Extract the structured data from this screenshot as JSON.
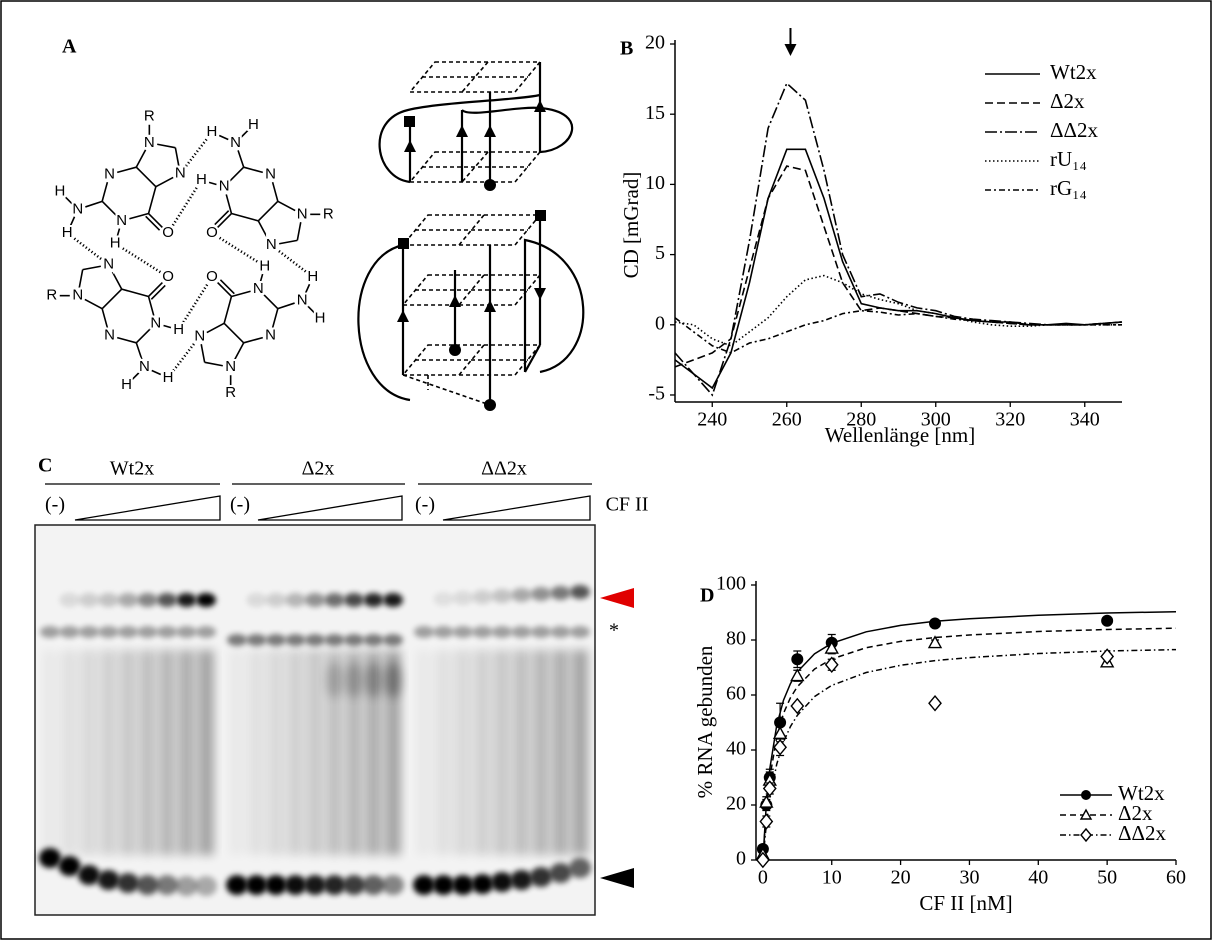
{
  "panel_a": {
    "label": "A",
    "guanines": [
      [
        "R",
        "N",
        "N",
        "N",
        "N",
        "H",
        "O",
        "N",
        "H",
        "H"
      ],
      [
        "R",
        "N",
        "N",
        "N",
        "N",
        "H",
        "O",
        "N",
        "H",
        "H"
      ],
      [
        "R",
        "N",
        "N",
        "N",
        "N",
        "H",
        "O",
        "N",
        "H",
        "H"
      ],
      [
        "R",
        "N",
        "N",
        "N",
        "N",
        "H",
        "O",
        "N",
        "H",
        "H"
      ]
    ]
  },
  "panel_c": {
    "label": "C",
    "groups": [
      "Wt2x",
      "Δ2x",
      "ΔΔ2x"
    ],
    "controls": [
      "(-)",
      "(-)",
      "(-)"
    ],
    "protein": "CF II",
    "marker": "*"
  },
  "chart_data": [
    {
      "type": "line",
      "label": "B",
      "xlabel": "Wellenlänge [nm]",
      "ylabel": "CD [mGrad]",
      "x": [
        230,
        235,
        240,
        245,
        250,
        255,
        260,
        265,
        270,
        275,
        280,
        285,
        290,
        295,
        300,
        305,
        310,
        315,
        320,
        325,
        330,
        335,
        340,
        345,
        350
      ],
      "series": [
        {
          "name": "Wt2x",
          "color": "#000000",
          "dash": "none",
          "values": [
            -2.5,
            -3.5,
            -4.5,
            -2,
            3,
            9,
            12.5,
            12.5,
            9,
            4.5,
            1.5,
            1.2,
            1,
            1,
            0.8,
            0.5,
            0.3,
            0.2,
            0.2,
            0,
            0,
            0.1,
            0,
            0.1,
            0.2
          ]
        },
        {
          "name": "Δ2x",
          "color": "#000000",
          "dash": "8 4",
          "values": [
            -3,
            -2.5,
            -2,
            -1,
            4,
            9,
            11.3,
            11,
            7,
            3,
            1,
            1.2,
            1,
            0.8,
            0.6,
            0.5,
            0.3,
            0.2,
            0.1,
            0,
            0,
            0,
            0,
            0.1,
            0.2
          ]
        },
        {
          "name": "ΔΔ2x",
          "color": "#000000",
          "dash": "12 3 2 3",
          "values": [
            -2,
            -3.5,
            -5,
            -1,
            6,
            14,
            17.2,
            16,
            11,
            5,
            2,
            2.2,
            1.6,
            1.2,
            1,
            0.6,
            0.4,
            0.3,
            0.2,
            0.1,
            0,
            0,
            0,
            0.1,
            0.2
          ]
        },
        {
          "name": "rU₁₄",
          "color": "#000000",
          "dash": "1.5 2.5",
          "values": [
            0.2,
            0,
            -1,
            -1.5,
            -0.5,
            0.5,
            2,
            3.2,
            3.5,
            3,
            2.2,
            1.8,
            1.5,
            1,
            0.8,
            0.5,
            0.2,
            0,
            -0.1,
            -0.1,
            0,
            0,
            0,
            0,
            0
          ]
        },
        {
          "name": "rG₁₄",
          "color": "#000000",
          "dash": "6 3 2 3",
          "values": [
            0.5,
            -0.5,
            -1.5,
            -2,
            -1.3,
            -1,
            -0.5,
            0,
            0.3,
            0.8,
            1,
            0.9,
            0.7,
            0.8,
            0.6,
            0.4,
            0.3,
            0.2,
            0.1,
            0,
            0,
            0,
            0,
            0,
            0
          ]
        }
      ],
      "xlim": [
        230,
        350
      ],
      "xticks": [
        240,
        260,
        280,
        300,
        320,
        340
      ],
      "ylim": [
        -5.5,
        20
      ],
      "yticks": [
        -5,
        0,
        5,
        10,
        15,
        20
      ],
      "legend": "upper right"
    },
    {
      "type": "scatter",
      "label": "D",
      "xlabel": "CF II [nM]",
      "ylabel": "% RNA gebunden",
      "fit_x": [
        0,
        0.5,
        1,
        2,
        3,
        4,
        5,
        7.5,
        10,
        15,
        20,
        25,
        30,
        40,
        50,
        60
      ],
      "series": [
        {
          "name": "Wt2x",
          "color": "#000000",
          "marker": "circle",
          "dash": "none",
          "x": [
            0,
            0.5,
            1,
            2.5,
            5,
            10,
            25,
            50
          ],
          "values": [
            4,
            20,
            30,
            50,
            73,
            79,
            86,
            87
          ],
          "errors": [
            1,
            2,
            3,
            7,
            3,
            3,
            1,
            1
          ],
          "fit_values": [
            0,
            20.2,
            33.2,
            48.9,
            58.1,
            64.1,
            68.4,
            75.0,
            78.8,
            83.0,
            85.3,
            86.8,
            87.7,
            89.0,
            89.8,
            90.3
          ]
        },
        {
          "name": "Δ2x",
          "color": "#000000",
          "marker": "triangle",
          "dash": "6 4",
          "x": [
            0,
            0.5,
            1,
            2.5,
            5,
            10,
            25,
            50
          ],
          "values": [
            2,
            21,
            29,
            46,
            67,
            77,
            79,
            72
          ],
          "errors": [
            1,
            2,
            3,
            5,
            2,
            2,
            1,
            1
          ],
          "fit_values": [
            0,
            18.1,
            30.0,
            44.6,
            53.3,
            59.0,
            63.0,
            69.4,
            73.1,
            77.2,
            79.5,
            80.9,
            81.8,
            83.1,
            83.8,
            84.3
          ]
        },
        {
          "name": "ΔΔ2x",
          "color": "#000000",
          "marker": "diamond",
          "dash": "6 3 1.5 3",
          "x": [
            0,
            0.5,
            1,
            2.5,
            5,
            10,
            25,
            50
          ],
          "values": [
            0,
            14,
            26,
            41,
            56,
            71,
            57,
            74
          ],
          "errors": [
            1,
            2,
            2,
            3,
            1,
            2,
            1,
            1
          ],
          "fit_values": [
            0,
            12.9,
            22.2,
            34.8,
            42.9,
            48.5,
            52.6,
            59.4,
            63.5,
            68.2,
            70.8,
            72.5,
            73.6,
            75.1,
            76.0,
            76.5
          ]
        }
      ],
      "xlim": [
        -1,
        60
      ],
      "xticks": [
        0,
        10,
        20,
        30,
        40,
        50,
        60
      ],
      "ylim": [
        0,
        100
      ],
      "yticks": [
        0,
        20,
        40,
        60,
        80,
        100
      ],
      "legend": "lower right"
    }
  ]
}
